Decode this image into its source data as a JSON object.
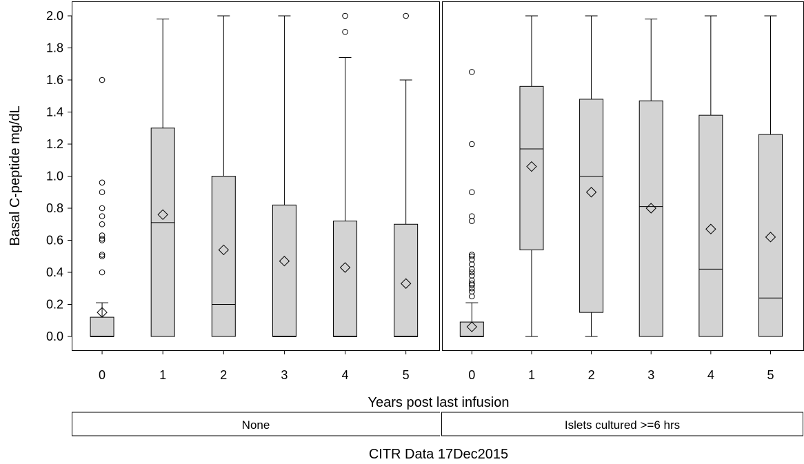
{
  "chart_data": {
    "type": "box",
    "ylabel": "Basal C-peptide mg/dL",
    "xlabel": "Years post last infusion",
    "footnote": "CITR  Data 17Dec2015",
    "ylim": [
      0,
      2.0
    ],
    "yticks": [
      0.0,
      0.2,
      0.4,
      0.6,
      0.8,
      1.0,
      1.2,
      1.4,
      1.6,
      1.8,
      2.0
    ],
    "ytick_labels": [
      "0.0",
      "0.2",
      "0.4",
      "0.6",
      "0.8",
      "1.0",
      "1.2",
      "1.4",
      "1.6",
      "1.8",
      "2.0"
    ],
    "categories": [
      "0",
      "1",
      "2",
      "3",
      "4",
      "5"
    ],
    "box_fill": "#d3d3d3",
    "grid": false,
    "panels": [
      {
        "name": "None",
        "boxes": [
          {
            "x": "0",
            "min": 0.0,
            "q1": 0.0,
            "median": 0.0,
            "q3": 0.12,
            "max": 0.21,
            "mean": 0.15,
            "outliers": [
              0.4,
              0.5,
              0.51,
              0.6,
              0.61,
              0.63,
              0.7,
              0.75,
              0.8,
              0.9,
              0.96,
              1.6
            ]
          },
          {
            "x": "1",
            "min": 0.0,
            "q1": 0.0,
            "median": 0.71,
            "q3": 1.3,
            "max": 1.98,
            "mean": 0.76,
            "outliers": []
          },
          {
            "x": "2",
            "min": 0.0,
            "q1": 0.0,
            "median": 0.2,
            "q3": 1.0,
            "max": 2.0,
            "mean": 0.54,
            "outliers": []
          },
          {
            "x": "3",
            "min": 0.0,
            "q1": 0.0,
            "median": 0.0,
            "q3": 0.82,
            "max": 2.0,
            "mean": 0.47,
            "outliers": []
          },
          {
            "x": "4",
            "min": 0.0,
            "q1": 0.0,
            "median": 0.0,
            "q3": 0.72,
            "max": 1.74,
            "mean": 0.43,
            "outliers": [
              1.9,
              2.0
            ]
          },
          {
            "x": "5",
            "min": 0.0,
            "q1": 0.0,
            "median": 0.0,
            "q3": 0.7,
            "max": 1.6,
            "mean": 0.33,
            "outliers": [
              2.0
            ]
          }
        ]
      },
      {
        "name": "Islets cultured >=6 hrs",
        "boxes": [
          {
            "x": "0",
            "min": 0.0,
            "q1": 0.0,
            "median": 0.0,
            "q3": 0.09,
            "max": 0.21,
            "mean": 0.06,
            "outliers": [
              0.25,
              0.28,
              0.3,
              0.32,
              0.33,
              0.35,
              0.38,
              0.4,
              0.42,
              0.45,
              0.48,
              0.5,
              0.51,
              0.72,
              0.75,
              0.9,
              1.2,
              1.65
            ]
          },
          {
            "x": "1",
            "min": 0.0,
            "q1": 0.54,
            "median": 1.17,
            "q3": 1.56,
            "max": 2.0,
            "mean": 1.06,
            "outliers": []
          },
          {
            "x": "2",
            "min": 0.0,
            "q1": 0.15,
            "median": 1.0,
            "q3": 1.48,
            "max": 2.0,
            "mean": 0.9,
            "outliers": []
          },
          {
            "x": "3",
            "min": 0.0,
            "q1": 0.0,
            "median": 0.81,
            "q3": 1.47,
            "max": 1.98,
            "mean": 0.8,
            "outliers": []
          },
          {
            "x": "4",
            "min": 0.0,
            "q1": 0.0,
            "median": 0.42,
            "q3": 1.38,
            "max": 2.0,
            "mean": 0.67,
            "outliers": []
          },
          {
            "x": "5",
            "min": 0.0,
            "q1": 0.0,
            "median": 0.24,
            "q3": 1.26,
            "max": 2.0,
            "mean": 0.62,
            "outliers": []
          }
        ]
      }
    ]
  }
}
